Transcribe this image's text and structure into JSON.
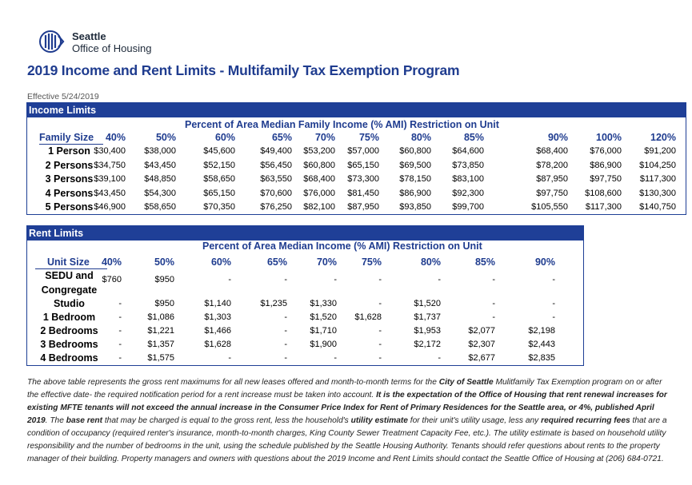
{
  "org": {
    "line1": "Seattle",
    "line2": "Office of Housing",
    "logo_icon": "seattle-logo-icon"
  },
  "title": "2019 Income and Rent Limits - Multifamily Tax Exemption Program",
  "effective": "Effective 5/24/2019",
  "income": {
    "header": "Income Limits",
    "subtitle": "Percent of Area Median Family Income (% AMI) Restriction on Unit",
    "col0": "Family Size",
    "columns": [
      "40%",
      "50%",
      "60%",
      "65%",
      "70%",
      "75%",
      "80%",
      "85%",
      "90%",
      "100%",
      "120%"
    ],
    "rows": [
      {
        "label": "1 Person",
        "values": [
          "$30,400",
          "$38,000",
          "$45,600",
          "$49,400",
          "$53,200",
          "$57,000",
          "$60,800",
          "$64,600",
          "$68,400",
          "$76,000",
          "$91,200"
        ]
      },
      {
        "label": "2 Persons",
        "values": [
          "$34,750",
          "$43,450",
          "$52,150",
          "$56,450",
          "$60,800",
          "$65,150",
          "$69,500",
          "$73,850",
          "$78,200",
          "$86,900",
          "$104,250"
        ]
      },
      {
        "label": "3 Persons",
        "values": [
          "$39,100",
          "$48,850",
          "$58,650",
          "$63,550",
          "$68,400",
          "$73,300",
          "$78,150",
          "$83,100",
          "$87,950",
          "$97,750",
          "$117,300"
        ]
      },
      {
        "label": "4 Persons",
        "values": [
          "$43,450",
          "$54,300",
          "$65,150",
          "$70,600",
          "$76,000",
          "$81,450",
          "$86,900",
          "$92,300",
          "$97,750",
          "$108,600",
          "$130,300"
        ]
      },
      {
        "label": "5 Persons",
        "values": [
          "$46,900",
          "$58,650",
          "$70,350",
          "$76,250",
          "$82,100",
          "$87,950",
          "$93,850",
          "$99,700",
          "$105,550",
          "$117,300",
          "$140,750"
        ]
      }
    ]
  },
  "rent": {
    "header": "Rent Limits",
    "subtitle": "Percent of Area Median Income (% AMI) Restriction on Unit",
    "col0": "Unit Size",
    "columns": [
      "40%",
      "50%",
      "60%",
      "65%",
      "70%",
      "75%",
      "80%",
      "85%",
      "90%"
    ],
    "rows": [
      {
        "label": "SEDU and",
        "values": [
          "$760",
          "$950",
          "-",
          "-",
          "-",
          "-",
          "-",
          "-",
          "-"
        ]
      },
      {
        "label": "Congregate",
        "values": [
          "",
          "",
          "",
          "",
          "",
          "",
          "",
          "",
          ""
        ]
      },
      {
        "label": "Studio",
        "values": [
          "-",
          "$950",
          "$1,140",
          "$1,235",
          "$1,330",
          "-",
          "$1,520",
          "-",
          "-"
        ]
      },
      {
        "label": "1 Bedroom",
        "values": [
          "-",
          "$1,086",
          "$1,303",
          "-",
          "$1,520",
          "$1,628",
          "$1,737",
          "-",
          "-"
        ]
      },
      {
        "label": "2 Bedrooms",
        "values": [
          "-",
          "$1,221",
          "$1,466",
          "-",
          "$1,710",
          "-",
          "$1,953",
          "$2,077",
          "$2,198"
        ]
      },
      {
        "label": "3 Bedrooms",
        "values": [
          "-",
          "$1,357",
          "$1,628",
          "-",
          "$1,900",
          "-",
          "$2,172",
          "$2,307",
          "$2,443"
        ]
      },
      {
        "label": "4 Bedrooms",
        "values": [
          "-",
          "$1,575",
          "-",
          "-",
          "-",
          "-",
          "-",
          "$2,677",
          "$2,835"
        ]
      }
    ]
  },
  "note": {
    "p1": "The above table represents the gross rent maximums for all new leases offered and month-to-month terms for the ",
    "b1": "City of Seattle",
    "p2": " Mulitfamily Tax Exemption program on or after the effective date- the required notification period for a rent increase must be taken into account. ",
    "b2": "It is the expectation of the Office of Housing that rent renewal increases for existing MFTE tenants will not exceed the annual increase in the Consumer Price Index for Rent of Primary Residences for the Seattle area, or 4%, published April 2019",
    "p3": ". The ",
    "b3": "base rent",
    "p4": " that may be charged is equal to the gross rent, less the household's ",
    "b4": "utility estimate",
    "p5": " for their unit's utility usage, less any ",
    "b5": "required recurring fees",
    "p6": " that are a condition of occupancy (required renter's insurance, month-to-month charges, King County Sewer Treatment Capacity Fee, etc.). The utility estimate is based on household utility responsibility and the number of bedrooms in the unit, using the schedule published by the Seattle Housing Authority. Tenants should refer questions about rents to the property manager of their building. Property managers and owners with questions about the 2019 Income and Rent Limits should contact the Seattle Office of Housing at (206) 684-0721."
  }
}
